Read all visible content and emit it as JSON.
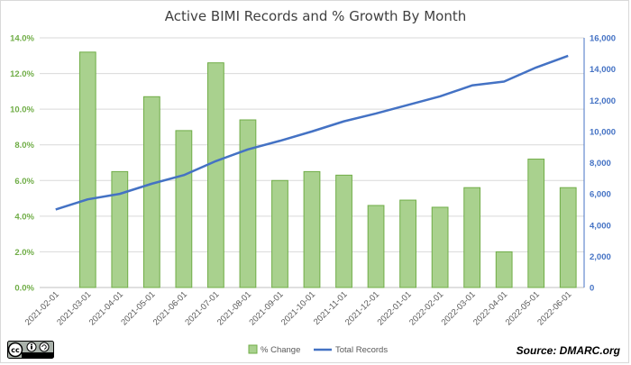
{
  "chart_data": {
    "type": "bar+line",
    "title": "Active BIMI Records and % Growth By Month",
    "categories": [
      "2021-02-01",
      "2021-03-01",
      "2021-04-01",
      "2021-05-01",
      "2021-06-01",
      "2021-07-01",
      "2021-08-01",
      "2021-09-01",
      "2021-10-01",
      "2021-11-01",
      "2021-12-01",
      "2022-01-01",
      "2022-02-01",
      "2022-03-01",
      "2022-04-01",
      "2022-05-01",
      "2022-06-01"
    ],
    "series": [
      {
        "name": "% Change",
        "kind": "bar",
        "axis": "left",
        "color": "#a9d18e",
        "edge": "#70ad47",
        "values": [
          null,
          13.2,
          6.5,
          10.7,
          8.8,
          12.6,
          9.4,
          6.0,
          6.5,
          6.3,
          4.6,
          4.9,
          4.5,
          5.6,
          2.0,
          7.2,
          5.6
        ]
      },
      {
        "name": "Total Records",
        "kind": "line",
        "axis": "right",
        "color": "#4472c4",
        "values": [
          5000,
          5650,
          6000,
          6650,
          7200,
          8100,
          8850,
          9400,
          10000,
          10650,
          11150,
          11700,
          12250,
          12950,
          13200,
          14100,
          14850
        ]
      }
    ],
    "y_left": {
      "min": 0,
      "max": 14,
      "step": 2,
      "format": "percent1"
    },
    "y_right": {
      "min": 0,
      "max": 16000,
      "step": 2000,
      "format": "thousands"
    },
    "legend_position": "bottom",
    "grid": true
  },
  "footer": {
    "source": "Source: DMARC.org",
    "license_badge": "cc-by-sa-icon"
  }
}
